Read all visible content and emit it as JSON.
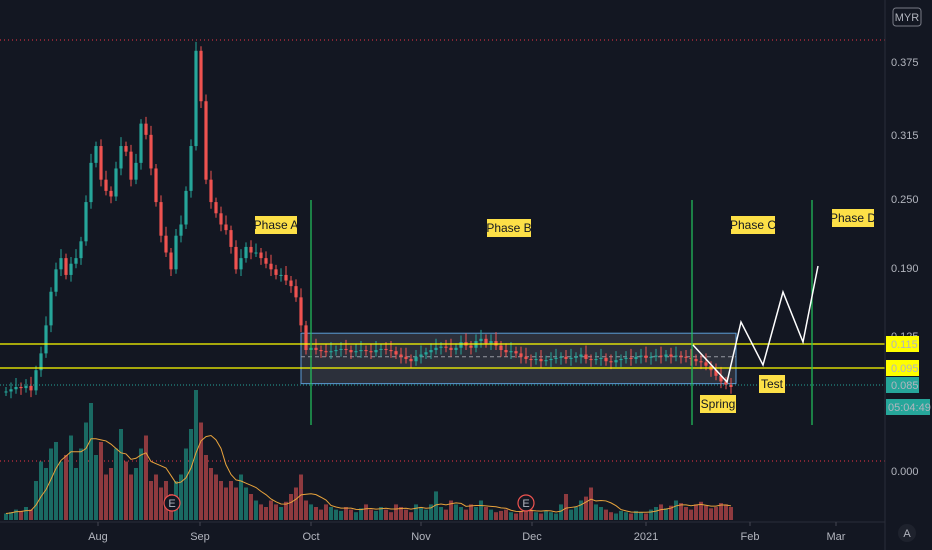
{
  "header": {
    "currency": "MYR"
  },
  "chart_data": {
    "type": "candlestick",
    "price_axis": {
      "ticks": [
        "0.375",
        "0.315",
        "0.250",
        "0.190",
        "0.125",
        "0.000"
      ],
      "ylim": [
        0.06,
        0.4
      ]
    },
    "time_axis": {
      "ticks": [
        "Aug",
        "Sep",
        "Oct",
        "Nov",
        "Dec",
        "2021",
        "Feb",
        "Mar"
      ]
    },
    "price_labels": [
      {
        "name": "upper-level",
        "value": 0.115,
        "text": "0.115",
        "color": "#ffff00"
      },
      {
        "name": "lower-level",
        "value": 0.095,
        "text": "0.095",
        "color": "#ffff00"
      },
      {
        "name": "last-price",
        "value": 0.085,
        "text": "0.085",
        "color": "#26a69a"
      }
    ],
    "countdown": "05:04:49",
    "annotations": [
      {
        "name": "phase-a",
        "text": "Phase A"
      },
      {
        "name": "phase-b",
        "text": "Phase B"
      },
      {
        "name": "phase-c",
        "text": "Phase C"
      },
      {
        "name": "phase-d",
        "text": "Phase D"
      },
      {
        "name": "spring",
        "text": "Spring"
      },
      {
        "name": "test",
        "text": "Test"
      }
    ],
    "earnings_markers": [
      "E",
      "E"
    ],
    "projection_path": [
      [
        0.117,
        0.095
      ],
      [
        0.082,
        0.14
      ],
      [
        0.105,
        0.165
      ],
      [
        0.12,
        0.19
      ]
    ],
    "price_series": [
      0.081,
      0.083,
      0.085,
      0.084,
      0.086,
      0.082,
      0.1,
      0.115,
      0.14,
      0.17,
      0.19,
      0.2,
      0.185,
      0.195,
      0.2,
      0.215,
      0.25,
      0.285,
      0.3,
      0.27,
      0.26,
      0.255,
      0.28,
      0.3,
      0.295,
      0.27,
      0.285,
      0.32,
      0.31,
      0.28,
      0.25,
      0.22,
      0.205,
      0.19,
      0.22,
      0.23,
      0.26,
      0.3,
      0.385,
      0.34,
      0.27,
      0.25,
      0.24,
      0.23,
      0.225,
      0.21,
      0.19,
      0.2,
      0.21,
      0.205,
      0.205,
      0.2,
      0.195,
      0.19,
      0.185,
      0.185,
      0.18,
      0.175,
      0.165,
      0.14,
      0.118,
      0.12,
      0.118,
      0.117,
      0.116,
      0.117,
      0.118,
      0.119,
      0.118,
      0.116,
      0.117,
      0.118,
      0.117,
      0.116,
      0.118,
      0.119,
      0.118,
      0.117,
      0.114,
      0.112,
      0.11,
      0.108,
      0.112,
      0.114,
      0.116,
      0.118,
      0.12,
      0.121,
      0.12,
      0.118,
      0.12,
      0.125,
      0.122,
      0.12,
      0.126,
      0.128,
      0.124,
      0.126,
      0.122,
      0.118,
      0.116,
      0.117,
      0.115,
      0.112,
      0.11,
      0.109,
      0.11,
      0.108,
      0.109,
      0.11,
      0.111,
      0.112,
      0.11,
      0.111,
      0.112,
      0.114,
      0.11,
      0.109,
      0.11,
      0.111,
      0.108,
      0.107,
      0.109,
      0.11,
      0.111,
      0.11,
      0.112,
      0.113,
      0.111,
      0.112,
      0.113,
      0.112,
      0.114,
      0.112,
      0.113,
      0.112,
      0.111,
      0.11,
      0.108,
      0.107,
      0.104,
      0.1,
      0.095,
      0.09,
      0.087,
      0.085
    ],
    "volume_series": [
      0.05,
      0.06,
      0.08,
      0.07,
      0.1,
      0.08,
      0.3,
      0.45,
      0.4,
      0.55,
      0.6,
      0.45,
      0.5,
      0.65,
      0.4,
      0.55,
      0.75,
      0.9,
      0.5,
      0.6,
      0.35,
      0.4,
      0.55,
      0.7,
      0.45,
      0.35,
      0.4,
      0.55,
      0.65,
      0.3,
      0.35,
      0.25,
      0.3,
      0.2,
      0.3,
      0.35,
      0.55,
      0.7,
      1.0,
      0.75,
      0.5,
      0.4,
      0.35,
      0.3,
      0.25,
      0.3,
      0.25,
      0.35,
      0.25,
      0.2,
      0.15,
      0.12,
      0.1,
      0.15,
      0.12,
      0.1,
      0.14,
      0.2,
      0.25,
      0.35,
      0.15,
      0.12,
      0.1,
      0.08,
      0.12,
      0.1,
      0.08,
      0.07,
      0.1,
      0.08,
      0.06,
      0.09,
      0.12,
      0.08,
      0.07,
      0.1,
      0.08,
      0.06,
      0.12,
      0.1,
      0.08,
      0.06,
      0.12,
      0.1,
      0.08,
      0.12,
      0.22,
      0.1,
      0.08,
      0.15,
      0.12,
      0.1,
      0.08,
      0.12,
      0.1,
      0.15,
      0.1,
      0.08,
      0.06,
      0.07,
      0.08,
      0.06,
      0.05,
      0.07,
      0.1,
      0.08,
      0.06,
      0.05,
      0.07,
      0.06,
      0.05,
      0.12,
      0.2,
      0.08,
      0.1,
      0.15,
      0.18,
      0.25,
      0.12,
      0.1,
      0.08,
      0.06,
      0.05,
      0.07,
      0.06,
      0.05,
      0.07,
      0.06,
      0.05,
      0.08,
      0.1,
      0.12,
      0.09,
      0.11,
      0.15,
      0.13,
      0.1,
      0.08,
      0.12,
      0.14,
      0.11,
      0.09,
      0.1,
      0.13,
      0.12,
      0.1
    ]
  }
}
